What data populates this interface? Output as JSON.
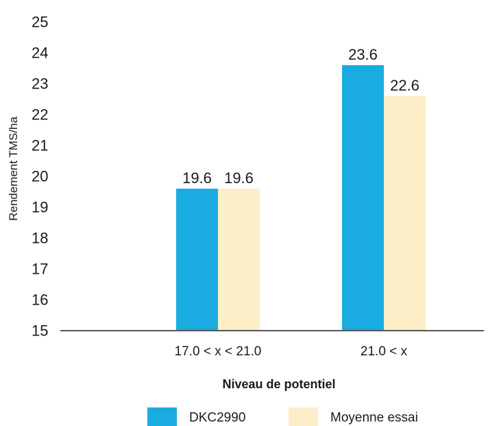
{
  "chart_data": {
    "type": "bar",
    "title": "",
    "xlabel": "Niveau de potentiel",
    "ylabel": "Rendement TMS/ha",
    "ylim": [
      15,
      25
    ],
    "yticks": [
      15,
      16,
      17,
      18,
      19,
      20,
      21,
      22,
      23,
      24,
      25
    ],
    "categories": [
      "17.0 < x < 21.0",
      "21.0 < x"
    ],
    "series": [
      {
        "name": "DKC2990",
        "values": [
          19.6,
          23.6
        ],
        "color": "#1aabe0"
      },
      {
        "name": "Moyenne essai",
        "values": [
          19.6,
          22.6
        ],
        "color": "#fbeec8"
      }
    ],
    "data_labels": true,
    "grid": false,
    "legend_position": "bottom"
  }
}
